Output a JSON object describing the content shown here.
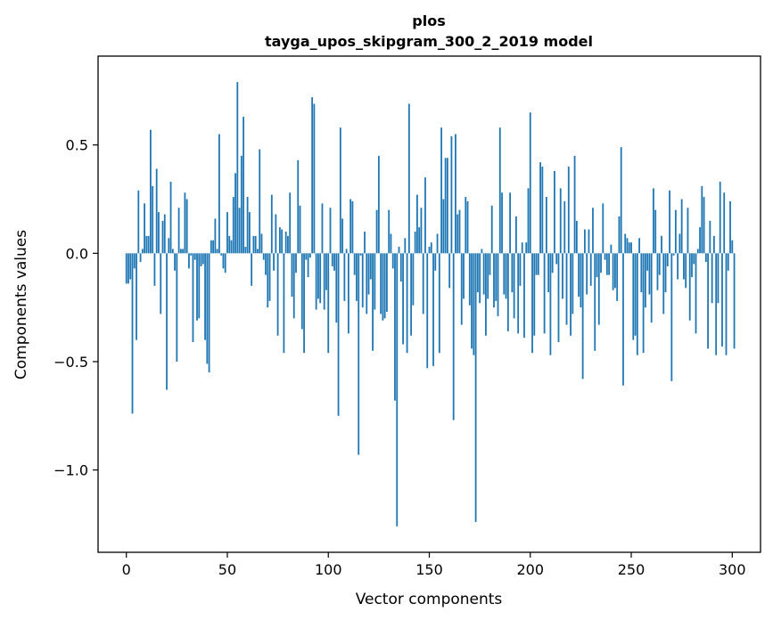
{
  "chart_data": {
    "type": "bar",
    "title": [
      "plos",
      "tayga_upos_skipgram_300_2_2019 model"
    ],
    "xlabel": "Vector components",
    "ylabel": "Components values",
    "xlim": [
      -14,
      314
    ],
    "ylim": [
      -1.38,
      0.91
    ],
    "xticks": [
      0,
      50,
      100,
      150,
      200,
      250,
      300
    ],
    "xtick_labels": [
      "0",
      "50",
      "100",
      "150",
      "200",
      "250",
      "300"
    ],
    "yticks": [
      -1.0,
      -0.5,
      0.0,
      0.5
    ],
    "ytick_labels": [
      "−1.0",
      "−0.5",
      "0.0",
      "0.5"
    ],
    "grid": false,
    "bar_color": "#1f77b4",
    "values": [
      -0.14,
      -0.14,
      -0.12,
      -0.74,
      -0.07,
      -0.4,
      0.29,
      -0.04,
      0.02,
      0.23,
      0.08,
      0.08,
      0.57,
      0.31,
      -0.15,
      0.39,
      0.19,
      -0.28,
      0.15,
      0.18,
      -0.63,
      0.07,
      0.33,
      0.02,
      -0.08,
      -0.5,
      0.21,
      0.02,
      0.02,
      0.28,
      0.25,
      -0.07,
      -0.01,
      -0.41,
      -0.03,
      -0.31,
      -0.3,
      -0.06,
      -0.05,
      -0.4,
      -0.51,
      -0.55,
      0.06,
      0.06,
      0.16,
      0.02,
      0.55,
      -0.01,
      -0.07,
      -0.09,
      0.19,
      0.08,
      0.06,
      0.26,
      0.37,
      0.79,
      0.21,
      0.45,
      0.63,
      0.03,
      0.26,
      0.19,
      -0.15,
      0.08,
      0.08,
      0.02,
      0.48,
      0.09,
      -0.03,
      -0.1,
      -0.25,
      -0.22,
      0.27,
      -0.08,
      0.18,
      -0.38,
      0.12,
      0.11,
      -0.46,
      0.1,
      0.08,
      0.28,
      -0.2,
      -0.3,
      -0.09,
      0.43,
      0.22,
      -0.35,
      -0.46,
      -0.03,
      -0.11,
      -0.02,
      0.72,
      0.69,
      -0.26,
      -0.21,
      -0.23,
      0.23,
      -0.26,
      -0.17,
      -0.46,
      0.21,
      -0.06,
      -0.08,
      -0.32,
      -0.75,
      0.58,
      0.16,
      -0.22,
      0.02,
      -0.37,
      0.25,
      0.24,
      -0.1,
      -0.22,
      -0.93,
      -0.01,
      -0.25,
      0.1,
      -0.28,
      -0.19,
      -0.12,
      -0.45,
      -0.26,
      0.2,
      0.45,
      -0.28,
      -0.31,
      -0.3,
      -0.27,
      0.2,
      0.09,
      -0.07,
      -0.68,
      -1.26,
      0.03,
      -0.13,
      -0.42,
      0.07,
      -0.46,
      0.69,
      -0.38,
      -0.24,
      0.1,
      0.27,
      0.12,
      0.21,
      -0.28,
      0.35,
      -0.53,
      0.03,
      0.05,
      -0.52,
      -0.08,
      0.09,
      -0.46,
      0.58,
      0.25,
      0.44,
      0.44,
      -0.16,
      0.54,
      -0.77,
      0.55,
      0.18,
      0.2,
      -0.33,
      -0.21,
      0.26,
      0.24,
      -0.24,
      -0.44,
      -0.47,
      -1.24,
      -0.18,
      -0.23,
      0.02,
      -0.19,
      -0.38,
      -0.21,
      -0.1,
      0.22,
      -0.25,
      -0.22,
      -0.29,
      0.58,
      0.28,
      -0.19,
      -0.21,
      -0.36,
      0.28,
      -0.18,
      -0.3,
      0.17,
      -0.37,
      -0.15,
      0.05,
      -0.39,
      0.05,
      0.3,
      0.65,
      -0.46,
      -0.38,
      -0.1,
      -0.1,
      0.42,
      0.4,
      -0.37,
      0.26,
      -0.18,
      -0.47,
      -0.09,
      0.38,
      -0.05,
      -0.41,
      0.3,
      -0.21,
      0.24,
      -0.33,
      0.4,
      -0.38,
      -0.28,
      0.45,
      0.15,
      -0.2,
      -0.25,
      -0.58,
      0.11,
      -0.19,
      0.11,
      -0.15,
      0.21,
      -0.45,
      -0.11,
      -0.33,
      -0.09,
      0.23,
      -0.03,
      -0.1,
      -0.1,
      0.04,
      -0.17,
      -0.16,
      -0.22,
      0.17,
      0.49,
      -0.61,
      0.09,
      0.07,
      0.05,
      0.05,
      -0.4,
      -0.38,
      -0.47,
      0.07,
      -0.18,
      -0.46,
      -0.25,
      -0.08,
      -0.19,
      -0.32,
      0.3,
      0.2,
      -0.17,
      -0.1,
      0.08,
      -0.28,
      -0.18,
      -0.06,
      0.29,
      -0.59,
      -0.01,
      0.2,
      -0.12,
      0.09,
      0.25,
      -0.12,
      -0.16,
      0.21,
      -0.31,
      -0.11,
      -0.05,
      -0.37,
      0.02,
      0.12,
      0.31,
      0.26,
      -0.04,
      -0.44,
      0.15,
      -0.23,
      0.08,
      -0.47,
      -0.23,
      0.33,
      -0.43,
      0.28,
      -0.47,
      -0.08,
      0.24,
      0.06,
      -0.44
    ]
  }
}
